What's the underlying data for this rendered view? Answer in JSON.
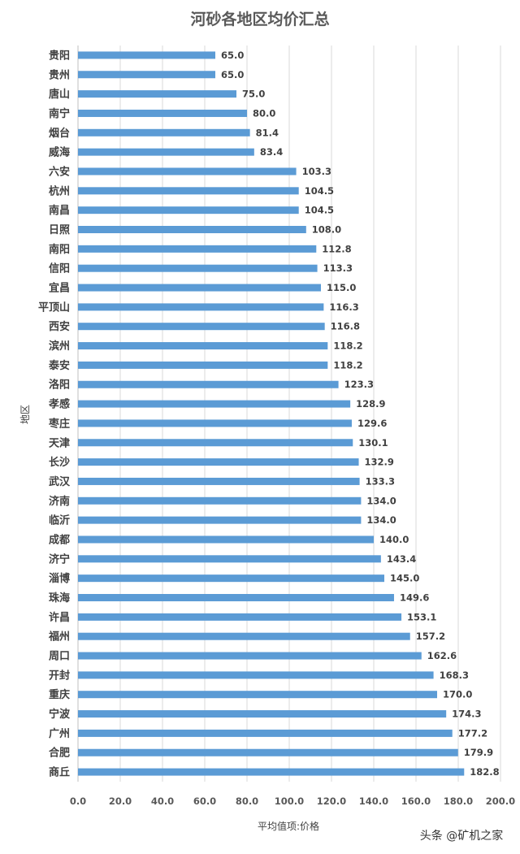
{
  "chart_data": {
    "type": "bar",
    "orientation": "horizontal",
    "title": "河砂各地区均价汇总",
    "xlabel": "平均值项:价格",
    "ylabel": "地区",
    "xlim": [
      0,
      200
    ],
    "xticks": [
      "0.0",
      "20.0",
      "40.0",
      "60.0",
      "80.0",
      "100.0",
      "120.0",
      "140.0",
      "160.0",
      "180.0",
      "200.0"
    ],
    "grid": true,
    "bar_color": "#5b9bd5",
    "categories": [
      "贵阳",
      "贵州",
      "唐山",
      "南宁",
      "烟台",
      "威海",
      "六安",
      "杭州",
      "南昌",
      "日照",
      "南阳",
      "信阳",
      "宜昌",
      "平顶山",
      "西安",
      "滨州",
      "泰安",
      "洛阳",
      "孝感",
      "枣庄",
      "天津",
      "长沙",
      "武汉",
      "济南",
      "临沂",
      "成都",
      "济宁",
      "淄博",
      "珠海",
      "许昌",
      "福州",
      "周口",
      "开封",
      "重庆",
      "宁波",
      "广州",
      "合肥",
      "商丘"
    ],
    "values": [
      65.0,
      65.0,
      75.0,
      80.0,
      81.4,
      83.4,
      103.3,
      104.5,
      104.5,
      108.0,
      112.8,
      113.3,
      115.0,
      116.3,
      116.8,
      118.2,
      118.2,
      123.3,
      128.9,
      129.6,
      130.1,
      132.9,
      133.3,
      134.0,
      134.0,
      140.0,
      143.4,
      145.0,
      149.6,
      153.1,
      157.2,
      162.6,
      168.3,
      170.0,
      174.3,
      177.2,
      179.9,
      182.8
    ],
    "value_labels": [
      "65.0",
      "65.0",
      "75.0",
      "80.0",
      "81.4",
      "83.4",
      "103.3",
      "104.5",
      "104.5",
      "108.0",
      "112.8",
      "113.3",
      "115.0",
      "116.3",
      "116.8",
      "118.2",
      "118.2",
      "123.3",
      "128.9",
      "129.6",
      "130.1",
      "132.9",
      "133.3",
      "134.0",
      "134.0",
      "140.0",
      "143.4",
      "145.0",
      "149.6",
      "153.1",
      "157.2",
      "162.6",
      "168.3",
      "170.0",
      "174.3",
      "177.2",
      "179.9",
      "182.8"
    ]
  },
  "watermark": "头条 @矿机之家"
}
